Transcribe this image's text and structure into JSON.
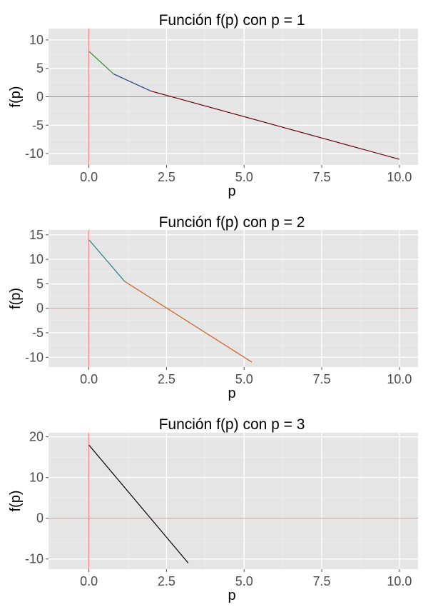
{
  "chart_data": [
    {
      "type": "line",
      "title": "Función f(p) con p = 1",
      "xlabel": "p",
      "ylabel": "f(p)",
      "xlim": [
        -1.3,
        10.6
      ],
      "ylim": [
        -12,
        12
      ],
      "x_ticks": [
        0,
        2.5,
        5,
        7.5,
        10
      ],
      "x_tick_labels": [
        "0.0",
        "2.5",
        "5.0",
        "7.5",
        "10.0"
      ],
      "y_ticks": [
        -10,
        -5,
        0,
        5,
        10
      ],
      "y_tick_labels": [
        "-10",
        "-5",
        "0",
        "5",
        "10"
      ],
      "grid": true,
      "reference_lines": {
        "x": 0,
        "y": 0,
        "color": "#ff6666"
      },
      "series": [
        {
          "color": "#2e8b2e",
          "x": [
            0,
            0.8
          ],
          "y": [
            8,
            4
          ]
        },
        {
          "color": "#1f3f8f",
          "x": [
            0.8,
            2
          ],
          "y": [
            4,
            1
          ]
        },
        {
          "color": "#6b0010",
          "x": [
            2,
            10
          ],
          "y": [
            1,
            -11
          ]
        }
      ]
    },
    {
      "type": "line",
      "title": "Función f(p) con p = 2",
      "xlabel": "p",
      "ylabel": "f(p)",
      "xlim": [
        -1.3,
        10.6
      ],
      "ylim": [
        -12,
        16
      ],
      "x_ticks": [
        0,
        2.5,
        5,
        7.5,
        10
      ],
      "x_tick_labels": [
        "0.0",
        "2.5",
        "5.0",
        "7.5",
        "10.0"
      ],
      "y_ticks": [
        -10,
        -5,
        0,
        5,
        10,
        15
      ],
      "y_tick_labels": [
        "-10",
        "-5",
        "0",
        "5",
        "10",
        "15"
      ],
      "grid": true,
      "reference_lines": {
        "x": 0,
        "y": 0,
        "color": "#ff6666"
      },
      "series": [
        {
          "color": "#1a8080",
          "x": [
            0,
            1.15
          ],
          "y": [
            14,
            5.5
          ]
        },
        {
          "color": "#d2581e",
          "x": [
            1.15,
            5.25
          ],
          "y": [
            5.5,
            -11
          ]
        }
      ]
    },
    {
      "type": "line",
      "title": "Función f(p) con p = 3",
      "xlabel": "p",
      "ylabel": "f(p)",
      "xlim": [
        -1.3,
        10.6
      ],
      "ylim": [
        -12.5,
        21
      ],
      "x_ticks": [
        0,
        2.5,
        5,
        7.5,
        10
      ],
      "x_tick_labels": [
        "0.0",
        "2.5",
        "5.0",
        "7.5",
        "10.0"
      ],
      "y_ticks": [
        -10,
        0,
        10,
        20
      ],
      "y_tick_labels": [
        "-10",
        "0",
        "10",
        "20"
      ],
      "grid": true,
      "reference_lines": {
        "x": 0,
        "y": 0,
        "color": "#ff6666"
      },
      "series": [
        {
          "color": "#000000",
          "x": [
            0,
            3.2
          ],
          "y": [
            18,
            -11
          ]
        }
      ]
    }
  ]
}
